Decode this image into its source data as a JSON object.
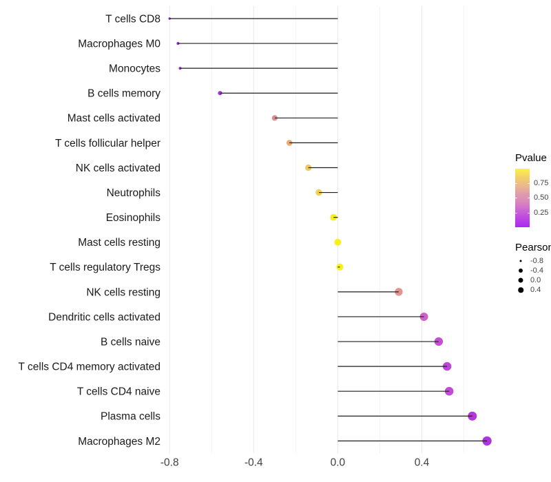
{
  "chart_data": {
    "type": "lollipop",
    "orientation": "horizontal",
    "xlabel": "",
    "ylabel": "",
    "grid": "vertical-only",
    "x_axis": {
      "ticks": [
        {
          "label": "-0.8",
          "value": -0.8
        },
        {
          "label": "-0.4",
          "value": -0.4
        },
        {
          "label": "0.0",
          "value": 0.0
        },
        {
          "label": "0.4",
          "value": 0.4
        }
      ],
      "minor_gridlines": [
        -0.6,
        -0.2,
        0.2,
        0.6
      ],
      "range": [
        -0.88,
        0.79
      ]
    },
    "value_name": "Pearson",
    "color_name": "Pvalue",
    "rows": [
      {
        "label": "T cells CD8",
        "pearson": -0.8,
        "color": "#8C2BE1"
      },
      {
        "label": "Macrophages M0",
        "pearson": -0.76,
        "color": "#9329DE"
      },
      {
        "label": "Monocytes",
        "pearson": -0.75,
        "color": "#962EDC"
      },
      {
        "label": "B cells memory",
        "pearson": -0.56,
        "color": "#A338D8"
      },
      {
        "label": "Mast cells activated",
        "pearson": -0.3,
        "color": "#D98E95"
      },
      {
        "label": "T cells follicular helper",
        "pearson": -0.23,
        "color": "#EAAC77"
      },
      {
        "label": "NK cells activated",
        "pearson": -0.14,
        "color": "#EEC75E"
      },
      {
        "label": "Neutrophils",
        "pearson": -0.09,
        "color": "#F0D24E"
      },
      {
        "label": "Eosinophils",
        "pearson": -0.02,
        "color": "#F6EE20"
      },
      {
        "label": "Mast cells resting",
        "pearson": 0.0,
        "color": "#F7F019"
      },
      {
        "label": "T cells regulatory  Tregs",
        "pearson": 0.01,
        "color": "#F7F019"
      },
      {
        "label": "NK cells resting",
        "pearson": 0.29,
        "color": "#E29492"
      },
      {
        "label": "Dendritic cells activated",
        "pearson": 0.41,
        "color": "#CC63C8"
      },
      {
        "label": "B cells naive",
        "pearson": 0.48,
        "color": "#C44ED2"
      },
      {
        "label": "T cells CD4 memory activated",
        "pearson": 0.52,
        "color": "#BD46D8"
      },
      {
        "label": "T cells CD4 naive",
        "pearson": 0.53,
        "color": "#C04BD6"
      },
      {
        "label": "Plasma cells",
        "pearson": 0.64,
        "color": "#B238DE"
      },
      {
        "label": "Macrophages M2",
        "pearson": 0.71,
        "color": "#AB34DF"
      }
    ]
  },
  "legend": {
    "pvalue": {
      "title": "Pvalue",
      "ticks": [
        {
          "label": "0.75",
          "t": 0.75
        },
        {
          "label": "0.50",
          "t": 0.5
        },
        {
          "label": "0.25",
          "t": 0.25
        }
      ],
      "gradient_bottom_to_top": [
        "#AB29F0",
        "#BC43E4",
        "#CB64D3",
        "#D988BC",
        "#DF9CAB",
        "#EBB98B",
        "#F3D167",
        "#FBF148"
      ]
    },
    "pearson": {
      "title": "Pearson",
      "items": [
        {
          "label": "-0.8",
          "size": 3
        },
        {
          "label": "-0.4",
          "size": 6
        },
        {
          "label": "0.0",
          "size": 7
        },
        {
          "label": "0.4",
          "size": 7.5
        }
      ]
    }
  },
  "colors": {
    "stem": "#1c1c1c",
    "grid_major": "#e8e8e8",
    "grid_minor": "#f4f4f4",
    "axis_text": "#404040",
    "label_text": "#1a1a1a"
  }
}
